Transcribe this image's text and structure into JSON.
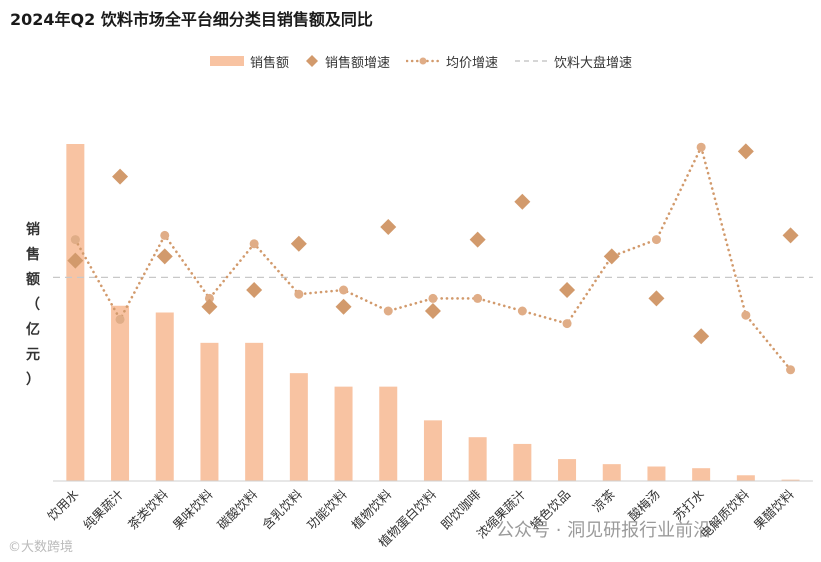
{
  "chart_data": {
    "type": "bar",
    "title": "2024年Q2 饮料市场全平台细分类目销售额及同比",
    "ylabel": "销售额（亿元）",
    "legend": {
      "placement": "top",
      "entries": [
        "销售额",
        "销售额增速",
        "均价增速",
        "饮料大盘增速"
      ]
    },
    "categories": [
      "饮用水",
      "纯果蔬汁",
      "茶类饮料",
      "果味饮料",
      "碳酸饮料",
      "含乳饮料",
      "功能饮料",
      "植物饮料",
      "植物蛋白饮料",
      "即饮咖啡",
      "浓缩果蔬汁",
      "特色饮品",
      "凉茶",
      "酸梅汤",
      "苏打水",
      "电解质饮料",
      "果醋饮料"
    ],
    "ylim": [
      0,
      100
    ],
    "secondary_ylim": [
      -50,
      50
    ],
    "series": [
      {
        "name": "销售额",
        "kind": "bar",
        "axis": "primary",
        "values": [
          100,
          52,
          50,
          41,
          41,
          32,
          28,
          28,
          18,
          13,
          11,
          6.5,
          5,
          4.3,
          3.8,
          1.7,
          0.4
        ]
      },
      {
        "name": "销售额增速",
        "kind": "diamond",
        "axis": "secondary",
        "values": [
          7,
          27,
          8,
          -4,
          0,
          11,
          -4,
          15,
          -5,
          12,
          21,
          0,
          8,
          -2,
          -11,
          33,
          13
        ]
      },
      {
        "name": "均价增速",
        "kind": "dotted-line",
        "axis": "secondary",
        "values": [
          12,
          -7,
          13,
          -2,
          11,
          -1,
          0,
          -5,
          -2,
          -2,
          -5,
          -8,
          8,
          12,
          34,
          -6,
          -19
        ]
      },
      {
        "name": "饮料大盘增速",
        "kind": "dashed-line",
        "axis": "secondary",
        "value": 3
      }
    ],
    "grid": false,
    "colors": {
      "bar": "#f8c3a2",
      "marker": "#d29a6c",
      "reference": "#c8c8c8"
    }
  },
  "watermarks": {
    "left": "©大数跨境",
    "right": "公众号 · 洞见研报行业前沿"
  }
}
